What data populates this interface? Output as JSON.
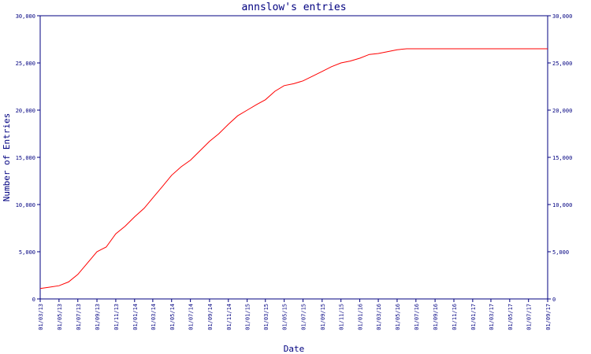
{
  "chart_data": {
    "type": "line",
    "title": "annslow's entries",
    "xlabel": "Date",
    "ylabel": "Number of Entries",
    "ylim": [
      0,
      30000
    ],
    "y_ticks": [
      "0",
      "5,000",
      "10,000",
      "15,000",
      "20,000",
      "25,000",
      "30,000"
    ],
    "x_ticks": [
      "01/03/13",
      "01/05/13",
      "01/07/13",
      "01/09/13",
      "01/11/13",
      "01/01/14",
      "01/03/14",
      "01/05/14",
      "01/07/14",
      "01/09/14",
      "01/11/14",
      "01/01/15",
      "01/03/15",
      "01/05/15",
      "01/07/15",
      "01/09/15",
      "01/11/15",
      "01/01/16",
      "01/03/16",
      "01/05/16",
      "01/07/16",
      "01/09/16",
      "01/11/16",
      "01/01/17",
      "01/03/17",
      "01/05/17",
      "01/07/17",
      "01/09/17"
    ],
    "grid": false,
    "line_color": "#ff0000",
    "axis_color": "#000080",
    "series": [
      {
        "x": [
          "2013-03-01",
          "2013-04-01",
          "2013-05-01",
          "2013-06-01",
          "2013-07-01",
          "2013-08-01",
          "2013-09-01",
          "2013-10-01",
          "2013-11-01",
          "2013-12-01",
          "2014-01-01",
          "2014-02-01",
          "2014-03-01",
          "2014-04-01",
          "2014-05-01",
          "2014-06-01",
          "2014-07-01",
          "2014-08-01",
          "2014-09-01",
          "2014-10-01",
          "2014-11-01",
          "2014-12-01",
          "2015-01-01",
          "2015-02-01",
          "2015-03-01",
          "2015-04-01",
          "2015-05-01",
          "2015-06-01",
          "2015-07-01",
          "2015-08-01",
          "2015-09-01",
          "2015-10-01",
          "2015-11-01",
          "2015-12-01",
          "2016-01-01",
          "2016-02-01",
          "2016-03-01",
          "2016-04-01",
          "2016-05-01",
          "2016-06-01",
          "2017-09-01"
        ],
        "values": [
          1100,
          1250,
          1400,
          1800,
          2600,
          3800,
          5000,
          5500,
          6900,
          7700,
          8700,
          9600,
          10700,
          11900,
          13100,
          14000,
          14700,
          15700,
          16700,
          17500,
          18500,
          19400,
          20000,
          20600,
          21100,
          22000,
          22600,
          22800,
          23100,
          23600,
          24100,
          24600,
          25000,
          25200,
          25500,
          25900,
          26000,
          26200,
          26400,
          26500,
          26500
        ]
      }
    ]
  }
}
